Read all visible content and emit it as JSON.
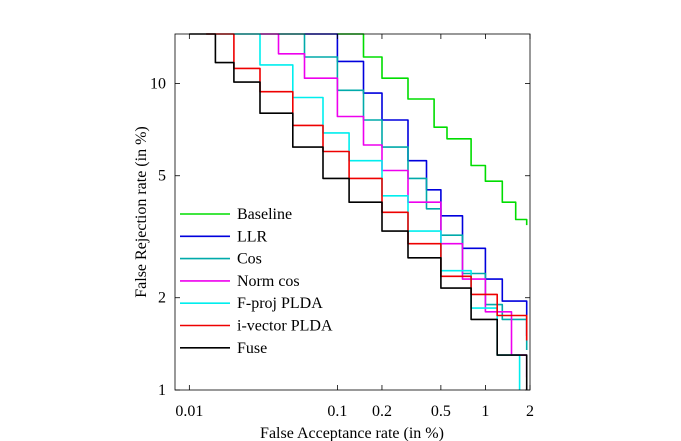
{
  "chart_data": {
    "type": "line",
    "title": "",
    "xlabel": "False Acceptance rate (in %)",
    "ylabel": "False Rejection rate (in %)",
    "xscale": "log",
    "yscale": "log",
    "xlim": [
      0.008,
      2.0
    ],
    "ylim": [
      1.0,
      14.5
    ],
    "xticks": [
      {
        "value": 0.01,
        "label": "0.01"
      },
      {
        "value": 0.1,
        "label": "0.1"
      },
      {
        "value": 0.2,
        "label": "0.2"
      },
      {
        "value": 0.5,
        "label": "0.5"
      },
      {
        "value": 1,
        "label": "1"
      },
      {
        "value": 2,
        "label": "2"
      }
    ],
    "yticks": [
      {
        "value": 1,
        "label": "1"
      },
      {
        "value": 2,
        "label": "2"
      },
      {
        "value": 5,
        "label": "5"
      },
      {
        "value": 10,
        "label": "10"
      }
    ],
    "grid": false,
    "legend_position": "bottom-left",
    "series": [
      {
        "name": "Baseline",
        "color": "#00dd00",
        "x": [
          0.1,
          0.15,
          0.2,
          0.3,
          0.45,
          0.55,
          0.8,
          1.0,
          1.3,
          1.6,
          1.9
        ],
        "y": [
          14.5,
          12.2,
          10.4,
          8.9,
          7.2,
          6.6,
          5.4,
          4.8,
          4.1,
          3.6,
          3.45
        ]
      },
      {
        "name": "LLR",
        "color": "#0000dd",
        "x": [
          0.06,
          0.1,
          0.15,
          0.2,
          0.3,
          0.4,
          0.5,
          0.7,
          1.0,
          1.3,
          1.9
        ],
        "y": [
          14.5,
          11.8,
          9.3,
          7.6,
          5.6,
          4.5,
          3.7,
          2.9,
          2.3,
          1.95,
          1.5
        ]
      },
      {
        "name": "Cos",
        "color": "#00aaaa",
        "x": [
          0.04,
          0.06,
          0.1,
          0.15,
          0.2,
          0.3,
          0.4,
          0.5,
          0.7,
          1.0,
          1.3,
          1.9
        ],
        "y": [
          14.5,
          12.2,
          9.5,
          7.6,
          6.2,
          4.9,
          3.9,
          3.2,
          2.4,
          1.9,
          1.7,
          1.35
        ]
      },
      {
        "name": "Norm cos",
        "color": "#ee00ee",
        "x": [
          0.03,
          0.04,
          0.06,
          0.1,
          0.15,
          0.2,
          0.3,
          0.5,
          0.7,
          1.0,
          1.5,
          1.9
        ],
        "y": [
          14.5,
          12.5,
          10.4,
          7.8,
          6.3,
          5.2,
          4.1,
          3.0,
          2.3,
          1.8,
          1.3,
          1.1
        ]
      },
      {
        "name": "F-proj PLDA",
        "color": "#00eeee",
        "x": [
          0.02,
          0.03,
          0.05,
          0.08,
          0.12,
          0.2,
          0.3,
          0.5,
          0.8,
          1.2,
          1.7
        ],
        "y": [
          14.5,
          11.5,
          9.0,
          6.9,
          5.6,
          4.3,
          3.3,
          2.45,
          1.85,
          1.3,
          1.0
        ]
      },
      {
        "name": "i-vector PLDA",
        "color": "#ee0000",
        "x": [
          0.013,
          0.02,
          0.03,
          0.05,
          0.08,
          0.12,
          0.2,
          0.3,
          0.5,
          0.8,
          1.2,
          1.9
        ],
        "y": [
          14.5,
          11.2,
          9.4,
          7.3,
          6.0,
          4.9,
          3.8,
          3.0,
          2.35,
          2.05,
          1.75,
          1.45
        ]
      },
      {
        "name": "Fuse",
        "color": "#000000",
        "x": [
          0.01,
          0.015,
          0.02,
          0.03,
          0.05,
          0.08,
          0.12,
          0.2,
          0.3,
          0.5,
          0.8,
          1.2,
          1.9
        ],
        "y": [
          14.5,
          11.7,
          10.1,
          8.0,
          6.2,
          4.9,
          4.1,
          3.3,
          2.7,
          2.15,
          1.7,
          1.3,
          1.0
        ]
      }
    ]
  }
}
